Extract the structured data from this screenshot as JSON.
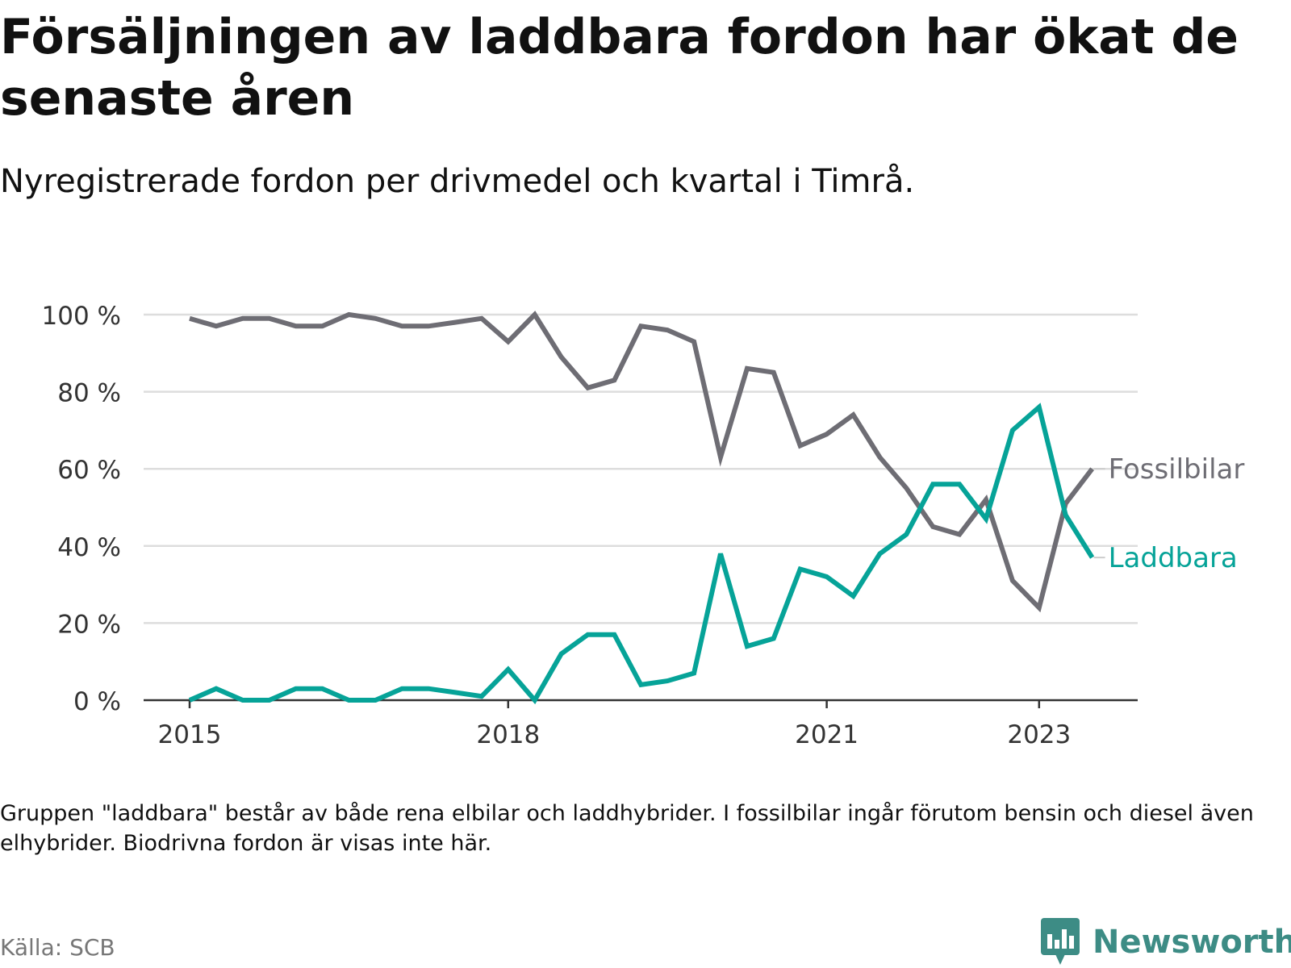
{
  "title": "Försäljningen av laddbara fordon har ökat de senaste åren",
  "subtitle": "Nyregistrerade fordon per drivmedel och kvartal i Timrå.",
  "note": "Gruppen \"laddbara\" består av både rena elbilar och laddhybrider. I fossilbilar ingår förutom bensin och diesel även elhybrider. Biodrivna fordon är visas inte här.",
  "source": "Källa: SCB",
  "brand": {
    "name": "Newsworthy",
    "icon": "bar-chart-speech-bubble-icon",
    "color": "#3d8c85"
  },
  "chart_data": {
    "type": "line",
    "y_axis": {
      "min": 0,
      "max": 100,
      "ticks": [
        "0 %",
        "20 %",
        "40 %",
        "60 %",
        "80 %",
        "100 %"
      ],
      "tick_values": [
        0,
        20,
        40,
        60,
        80,
        100
      ]
    },
    "x_axis": {
      "ticks": [
        "2015",
        "2018",
        "2021",
        "2023"
      ],
      "tick_quarter_index": [
        0,
        12,
        24,
        32
      ]
    },
    "quarters": [
      "2015 K1",
      "2015 K2",
      "2015 K3",
      "2015 K4",
      "2016 K1",
      "2016 K2",
      "2016 K3",
      "2016 K4",
      "2017 K1",
      "2017 K2",
      "2017 K3",
      "2017 K4",
      "2018 K1",
      "2018 K2",
      "2018 K3",
      "2018 K4",
      "2019 K1",
      "2019 K2",
      "2019 K3",
      "2019 K4",
      "2020 K1",
      "2020 K2",
      "2020 K3",
      "2020 K4",
      "2021 K1",
      "2021 K2",
      "2021 K3",
      "2021 K4",
      "2022 K1",
      "2022 K2",
      "2022 K3",
      "2022 K4",
      "2023 K1",
      "2023 K2",
      "2023 K3"
    ],
    "series": [
      {
        "name": "Fossilbilar",
        "color": "#6e6d74",
        "values": [
          99,
          97,
          99,
          99,
          97,
          97,
          100,
          99,
          97,
          97,
          98,
          99,
          93,
          100,
          89,
          81,
          83,
          97,
          96,
          93,
          63,
          86,
          85,
          66,
          69,
          74,
          63,
          55,
          45,
          43,
          52,
          31,
          24,
          51,
          60
        ]
      },
      {
        "name": "Laddbara",
        "color": "#06a398",
        "values": [
          0,
          3,
          0,
          0,
          3,
          3,
          0,
          0,
          3,
          3,
          2,
          1,
          8,
          0,
          12,
          17,
          17,
          4,
          5,
          7,
          38,
          14,
          16,
          34,
          32,
          27,
          38,
          43,
          56,
          56,
          47,
          70,
          76,
          48,
          37
        ]
      }
    ]
  }
}
